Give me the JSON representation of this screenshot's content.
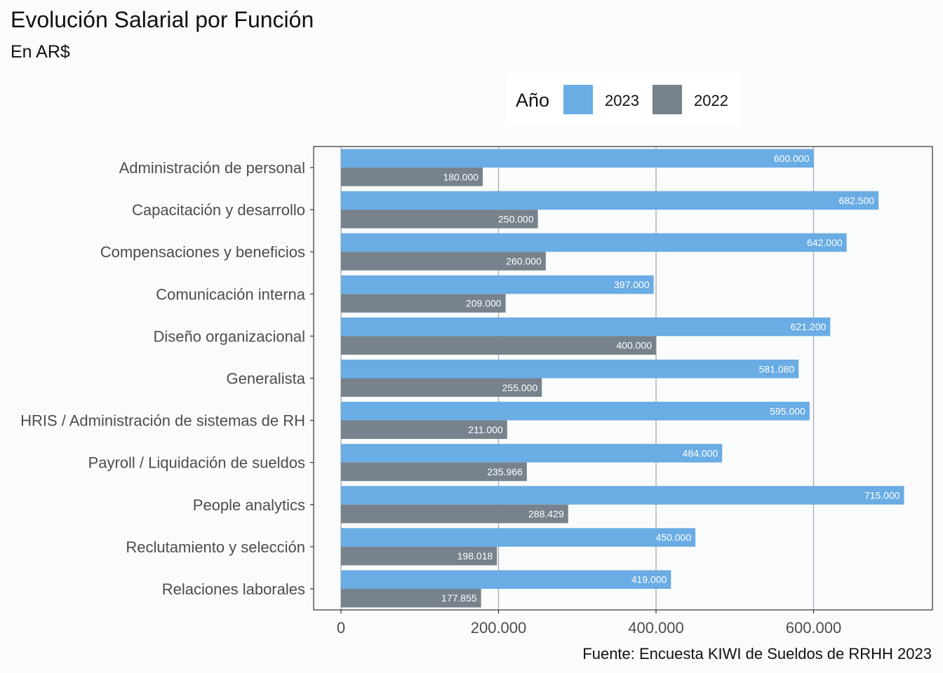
{
  "title": "Evolución Salarial por Función",
  "subtitle": "En AR$",
  "caption": "Fuente: Encuesta KIWI de Sueldos de RRHH 2023",
  "legend": {
    "title": "Año",
    "items": [
      {
        "label": "2023",
        "color": "#6aace4"
      },
      {
        "label": "2022",
        "color": "#77828c"
      }
    ],
    "placement": "top"
  },
  "chart_data": {
    "type": "bar",
    "orientation": "horizontal",
    "title": "Evolución Salarial por Función",
    "subtitle": "En AR$",
    "categories": [
      "Administración de personal",
      "Capacitación y desarrollo",
      "Compensaciones y beneficios",
      "Comunicación interna",
      "Diseño organizacional",
      "Generalista",
      "HRIS / Administración de sistemas de RH",
      "Payroll / Liquidación de sueldos",
      "People analytics",
      "Reclutamiento y selección",
      "Relaciones laborales"
    ],
    "series": [
      {
        "name": "2023",
        "color": "#6aace4",
        "values": [
          600000,
          682500,
          642000,
          397000,
          621200,
          581080,
          595000,
          484000,
          715000,
          450000,
          419000
        ],
        "labels": [
          "600.000",
          "682.500",
          "642.000",
          "397.000",
          "621.200",
          "581.080",
          "595.000",
          "484.000",
          "715.000",
          "450.000",
          "419.000"
        ]
      },
      {
        "name": "2022",
        "color": "#77828c",
        "values": [
          180000,
          250000,
          260000,
          209000,
          400000,
          255000,
          211000,
          235966,
          288429,
          198018,
          177855
        ],
        "labels": [
          "180.000",
          "250.000",
          "260.000",
          "209.000",
          "400.000",
          "255.000",
          "211.000",
          "235.966",
          "288.429",
          "198.018",
          "177.855"
        ]
      }
    ],
    "xlim": [
      -35000,
      750000
    ],
    "x_ticks": [
      0,
      200000,
      400000,
      600000
    ],
    "x_tick_labels": [
      "0",
      "200.000",
      "400.000",
      "600.000"
    ],
    "grid": "vertical major",
    "xlabel": "",
    "ylabel": ""
  }
}
